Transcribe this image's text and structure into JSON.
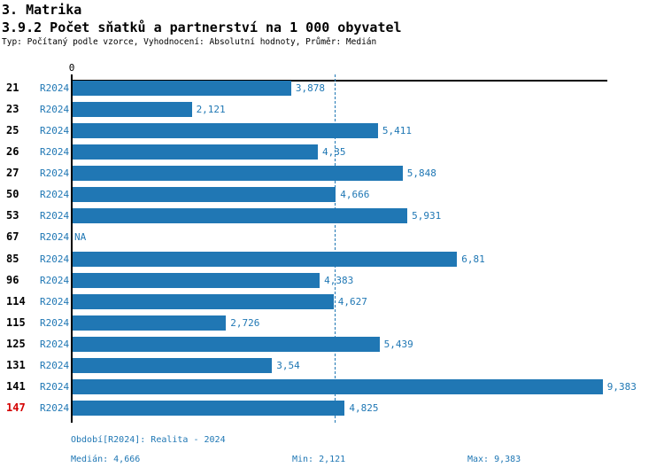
{
  "header": {
    "title": "3. Matrika",
    "subtitle": "3.9.2 Počet sňatků a partnerství na 1 000 obyvatel",
    "meta": "Typ: Počítaný podle vzorce, Vyhodnocení: Absolutní hodnoty, Průměr: Medián"
  },
  "axis": {
    "zero_label": "0"
  },
  "colors": {
    "bar": "#2077b4",
    "blue_text": "#1f77b4",
    "highlight_row": "#d40000",
    "axis": "#000000"
  },
  "chart_data": {
    "type": "bar",
    "orientation": "horizontal",
    "title": "3.9.2 Počet sňatků a partnerství na 1 000 obyvatel",
    "xlabel": "",
    "ylabel": "",
    "grid": false,
    "xlim": [
      0,
      9.45
    ],
    "series_label": "R2024",
    "categories": [
      "21",
      "23",
      "25",
      "26",
      "27",
      "50",
      "53",
      "67",
      "85",
      "96",
      "114",
      "115",
      "125",
      "131",
      "141",
      "147"
    ],
    "values": [
      3.878,
      2.121,
      5.411,
      4.35,
      5.848,
      4.666,
      5.931,
      null,
      6.81,
      4.383,
      4.627,
      2.726,
      5.439,
      3.54,
      9.383,
      4.825
    ],
    "value_labels": [
      "3,878",
      "2,121",
      "5,411",
      "4,35",
      "5,848",
      "4,666",
      "5,931",
      "NA",
      "6,81",
      "4,383",
      "4,627",
      "2,726",
      "5,439",
      "3,54",
      "9,383",
      "4,825"
    ],
    "highlighted_categories": [
      "147"
    ],
    "median": 4.666,
    "median_line": "dashed"
  },
  "legend": {
    "period": "Období[R2024]: Realita - 2024",
    "median": "Medián: 4,666",
    "min": "Min: 2,121",
    "max": "Max: 9,383"
  }
}
